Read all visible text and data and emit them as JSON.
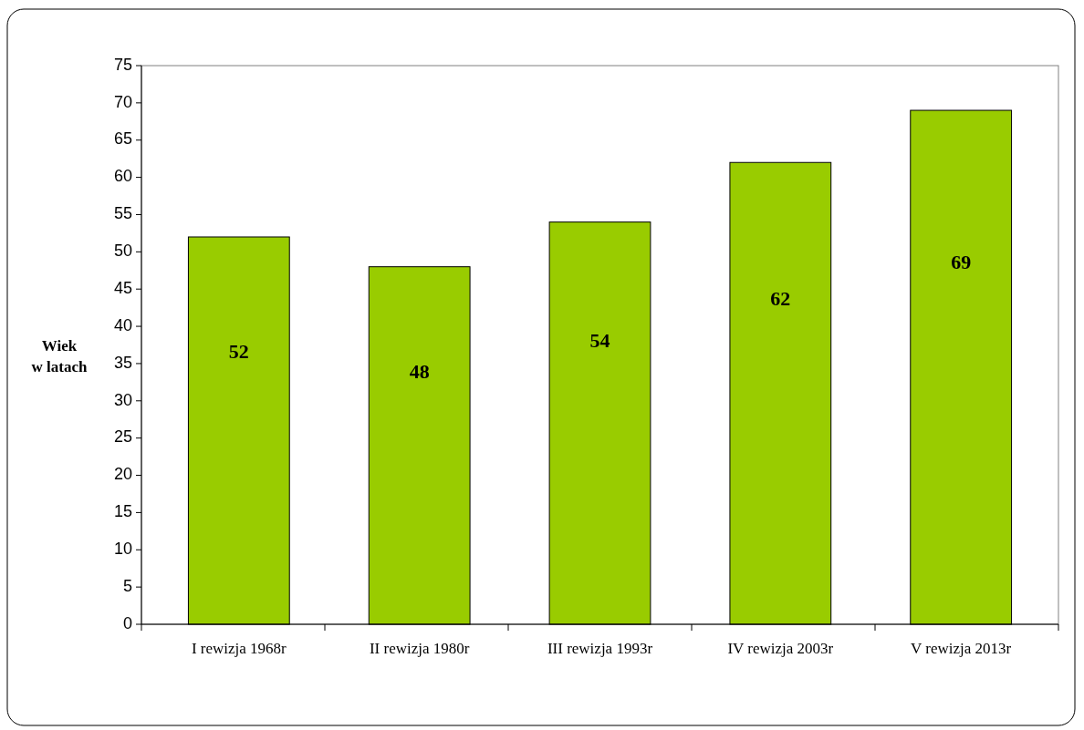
{
  "chart_data": {
    "type": "bar",
    "ylabel": "Wiek\nw latach",
    "categories": [
      "I rewizja 1968r",
      "II rewizja 1980r",
      "III rewizja 1993r",
      "IV rewizja 2003r",
      "V rewizja 2013r"
    ],
    "values": [
      52,
      48,
      54,
      62,
      69
    ],
    "color": "#99cc00",
    "ylim": [
      0,
      75
    ],
    "yticks": [
      0,
      5,
      10,
      15,
      20,
      25,
      30,
      35,
      40,
      45,
      50,
      55,
      60,
      65,
      70,
      75
    ],
    "data_labels": true
  }
}
